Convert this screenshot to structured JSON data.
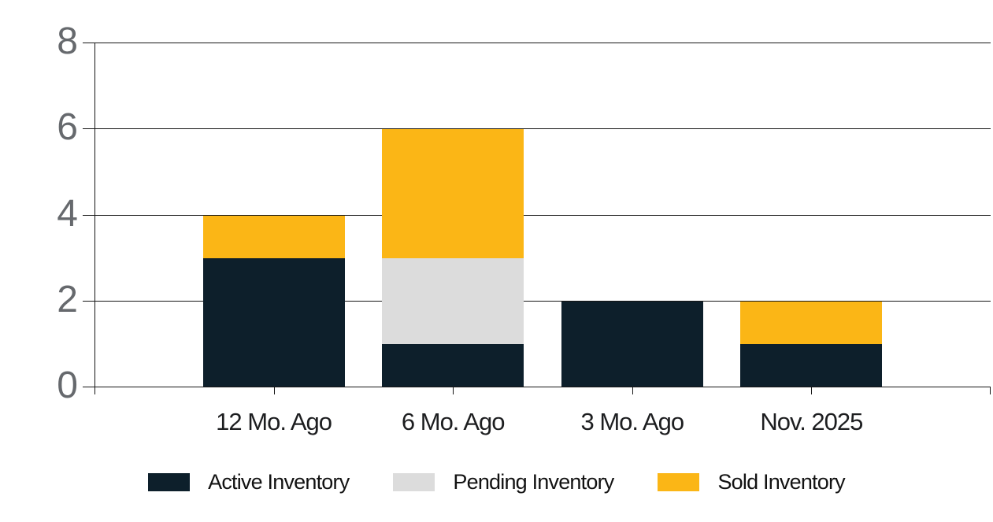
{
  "chart_data": {
    "type": "bar",
    "stacked": true,
    "title": "",
    "xlabel": "",
    "ylabel": "",
    "categories": [
      "12 Mo. Ago",
      "6 Mo. Ago",
      "3 Mo. Ago",
      "Nov. 2025"
    ],
    "series": [
      {
        "name": "Active Inventory",
        "color": "#0d1f2b",
        "values": [
          3,
          1,
          2,
          1
        ]
      },
      {
        "name": "Pending Inventory",
        "color": "#dcdcdc",
        "values": [
          0,
          2,
          0,
          0
        ]
      },
      {
        "name": "Sold Inventory",
        "color": "#fbb616",
        "values": [
          1,
          3,
          0,
          1
        ]
      }
    ],
    "ylim": [
      0,
      8
    ],
    "yticks": [
      0,
      2,
      4,
      6,
      8
    ],
    "grid": true,
    "legend_position": "bottom"
  },
  "colors": {
    "background": "#ffffff",
    "grid_line": "#161616",
    "axis_line": "#161616",
    "y_tick_label": "#66696d",
    "x_tick_label": "#1d1e20",
    "legend_text": "#121212"
  }
}
